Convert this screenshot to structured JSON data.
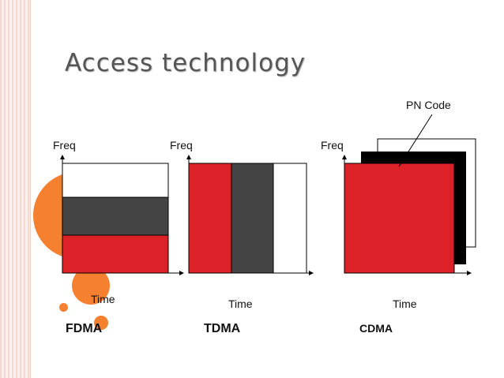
{
  "slide": {
    "title": "Access technology",
    "colors": {
      "red": "#dc2128",
      "dark_gray": "#444444",
      "white": "#ffffff",
      "black": "#000000",
      "orange": "#f58030"
    }
  },
  "diagrams": {
    "fdma": {
      "label": "FDMA",
      "y_axis": "Freq",
      "x_axis": "Time"
    },
    "tdma": {
      "label": "TDMA",
      "y_axis": "Freq",
      "x_axis": "Time"
    },
    "cdma": {
      "label": "CDMA",
      "y_axis": "Freq",
      "x_axis": "Time",
      "code_callout": "PN Code"
    }
  }
}
